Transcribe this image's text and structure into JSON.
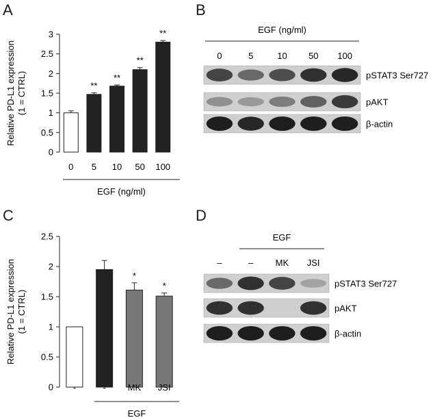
{
  "panels": {
    "a": "A",
    "b": "B",
    "c": "C",
    "d": "D"
  },
  "chart_data": [
    {
      "type": "bar",
      "panel": "A",
      "ylabel": "Relative PD-L1 expression",
      "ylabel_sub": "(1 = CTRL)",
      "xlabel": "EGF (ng/ml)",
      "categories": [
        "0",
        "5",
        "10",
        "50",
        "100"
      ],
      "values": [
        1.0,
        1.47,
        1.68,
        2.1,
        2.8
      ],
      "errors": [
        0.05,
        0.04,
        0.03,
        0.05,
        0.04
      ],
      "significance": [
        "",
        "**",
        "**",
        "**",
        "**"
      ],
      "bar_fill": [
        "#ffffff",
        "#222222",
        "#222222",
        "#222222",
        "#222222"
      ],
      "ylim": [
        0,
        3
      ],
      "yticks": [
        "0",
        "0.5",
        "1",
        "1.5",
        "2",
        "2.5",
        "3"
      ],
      "grid": false
    },
    {
      "type": "bar",
      "panel": "C",
      "ylabel": "Relative PD-L1 expression",
      "ylabel_sub": "(1 = CTRL)",
      "xlabel": "EGF",
      "categories": [
        "-",
        "-",
        "MK",
        "JSI"
      ],
      "values": [
        1.0,
        1.95,
        1.61,
        1.51
      ],
      "errors": [
        0.0,
        0.15,
        0.12,
        0.05
      ],
      "significance": [
        "",
        "",
        "*",
        "*"
      ],
      "bar_fill": [
        "#ffffff",
        "#222222",
        "#777777",
        "#777777"
      ],
      "ylim": [
        0,
        2.5
      ],
      "yticks": [
        "0",
        "0.5",
        "1",
        "1.5",
        "2",
        "2.5"
      ],
      "grid": false
    }
  ],
  "blots": {
    "b": {
      "treatment": "EGF (ng/ml)",
      "lanes": [
        "0",
        "5",
        "10",
        "50",
        "100"
      ],
      "rows": [
        {
          "label": "pSTAT3 Ser727",
          "intensity": [
            0.75,
            0.55,
            0.7,
            0.85,
            0.9
          ]
        },
        {
          "label": "pAKT",
          "intensity": [
            0.35,
            0.3,
            0.45,
            0.6,
            0.8
          ]
        },
        {
          "label": "β-actin",
          "intensity": [
            0.95,
            0.9,
            0.95,
            0.95,
            0.95
          ]
        }
      ]
    },
    "d": {
      "treatment": "EGF",
      "lanes": [
        "–",
        "–",
        "MK",
        "JSI"
      ],
      "rows": [
        {
          "label": "pSTAT3 Ser727",
          "intensity": [
            0.55,
            0.85,
            0.75,
            0.25
          ]
        },
        {
          "label": "pAKT",
          "intensity": [
            0.85,
            0.85,
            0.0,
            0.85
          ]
        },
        {
          "label": "β-actin",
          "intensity": [
            0.95,
            0.95,
            0.95,
            0.95
          ]
        }
      ]
    }
  }
}
